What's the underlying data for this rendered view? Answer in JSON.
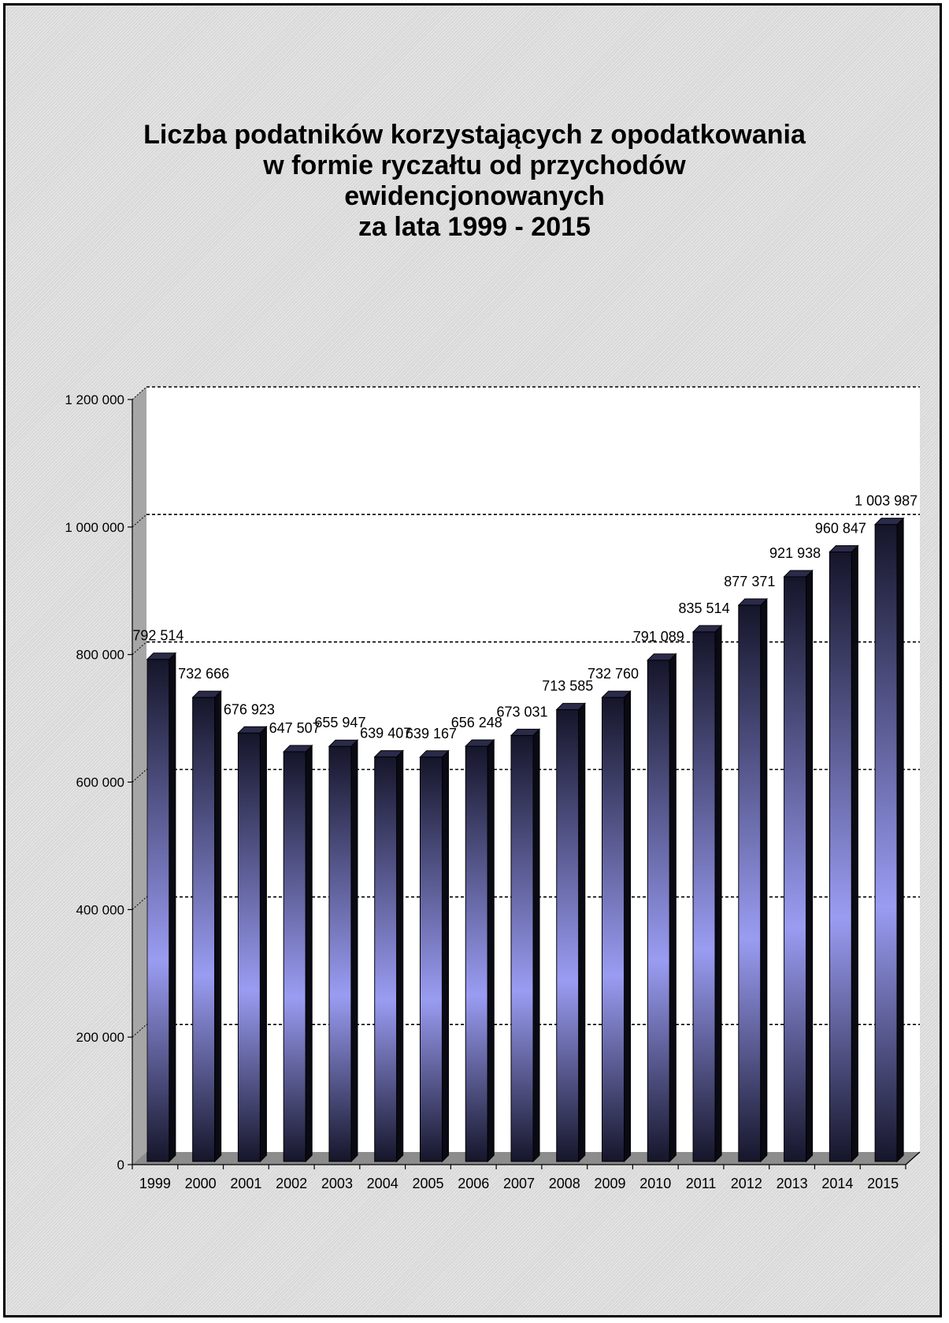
{
  "chart_data": {
    "type": "bar",
    "title": "Liczba podatników korzystających  z opodatkowania\nw formie ryczałtu od przychodów\newidencjonowanych\nza lata 1999 - 2015",
    "categories": [
      "1999",
      "2000",
      "2001",
      "2002",
      "2003",
      "2004",
      "2005",
      "2006",
      "2007",
      "2008",
      "2009",
      "2010",
      "2011",
      "2012",
      "2013",
      "2014",
      "2015"
    ],
    "values": [
      792514,
      732666,
      676923,
      647507,
      655947,
      639407,
      639167,
      656248,
      673031,
      713585,
      732760,
      791089,
      835514,
      877371,
      921938,
      960847,
      1003987
    ],
    "data_labels": [
      "792 514",
      "732 666",
      "676 923",
      "647 507",
      "655 947",
      "639 407",
      "639 167",
      "656 248",
      "673 031",
      "713 585",
      "732 760",
      "791 089",
      "835 514",
      "877 371",
      "921 938",
      "960 847",
      "1 003 987"
    ],
    "ylim": [
      0,
      1200000
    ],
    "yticks": [
      0,
      200000,
      400000,
      600000,
      800000,
      1000000,
      1200000
    ],
    "ytick_labels": [
      "0",
      "200 000",
      "400 000",
      "600 000",
      "800 000",
      "1 000 000",
      "1 200 000"
    ],
    "xlabel": "",
    "ylabel": "",
    "grid": true,
    "colors": {
      "bar_dark": "#15152a",
      "bar_light": "#9a9cf2",
      "bar_side": "#0a0a14",
      "bar_top": "#2a2a4a",
      "plot_background": "#ffffff",
      "wall_side": "#a6a6a6",
      "floor": "#8c8c8c"
    }
  }
}
